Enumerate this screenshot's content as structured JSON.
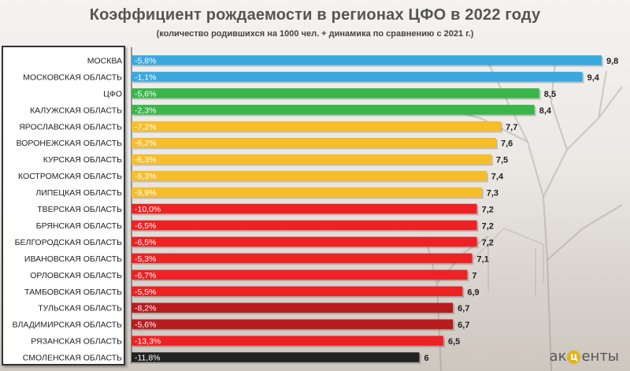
{
  "title": "Коэффициент рождаемости в регионах ЦФО в 2022 году",
  "subtitle": "(количество родившихся на 1000 чел. + динамика по сравнению с 2021 г.)",
  "logo": {
    "prefix": "ак",
    "mark": "ц",
    "suffix": "енты"
  },
  "colors": {
    "blue": "#3aa8df",
    "green": "#3ab54a",
    "yellow": "#f7be2a",
    "red": "#ed2224",
    "darkred": "#b81c1f",
    "black": "#222222"
  },
  "chart_data": {
    "type": "bar",
    "orientation": "horizontal",
    "title": "Коэффициент рождаемости в регионах ЦФО в 2022 году",
    "subtitle": "(количество родившихся на 1000 чел. + динамика по сравнению с 2021 г.)",
    "xlim": [
      0,
      9.8
    ],
    "grid": false,
    "categories": [
      "МОСКВА",
      "МОСКОВСКАЯ ОБЛАСТЬ",
      "ЦФО",
      "КАЛУЖСКАЯ ОБЛАСТЬ",
      "ЯРОСЛАВСКАЯ ОБЛАСТЬ",
      "ВОРОНЕЖСКАЯ ОБЛАСТЬ",
      "КУРСКАЯ ОБЛАСТЬ",
      "КОСТРОМСКАЯ ОБЛАСТЬ",
      "ЛИПЕЦКАЯ ОБЛАСТЬ",
      "ТВЕРСКАЯ ОБЛАСТЬ",
      "БРЯНСКАЯ ОБЛАСТЬ",
      "БЕЛГОРОДСКАЯ ОБЛАСТЬ",
      "ИВАНОВСКАЯ ОБЛАСТЬ",
      "ОРЛОВСКАЯ ОБЛАСТЬ",
      "ТАМБОВСКАЯ ОБЛАСТЬ",
      "ТУЛЬСКАЯ ОБЛАСТЬ",
      "ВЛАДИМИРСКАЯ ОБЛАСТЬ",
      "РЯЗАНСКАЯ ОБЛАСТЬ",
      "СМОЛЕНСКАЯ ОБЛАСТЬ"
    ],
    "values": [
      9.8,
      9.4,
      8.5,
      8.4,
      7.7,
      7.6,
      7.5,
      7.4,
      7.3,
      7.2,
      7.2,
      7.2,
      7.1,
      7,
      6.9,
      6.7,
      6.7,
      6.5,
      6
    ],
    "value_labels": [
      "9,8",
      "9,4",
      "8,5",
      "8,4",
      "7,7",
      "7,6",
      "7,5",
      "7,4",
      "7,3",
      "7,2",
      "7,2",
      "7,2",
      "7,1",
      "7",
      "6,9",
      "6,7",
      "6,7",
      "6,5",
      "6"
    ],
    "change_labels": [
      "-5,8%",
      "-1,1%",
      "-5,6%",
      "-2,3%",
      "-7,2%",
      "-6,2%",
      "-6,3%",
      "-6,3%",
      "-9,9%",
      "-10,0%",
      "-6,5%",
      "-6,5%",
      "-5,3%",
      "-6,7%",
      "-5,5%",
      "-8,2%",
      "-5,6%",
      "-13,3%",
      "-11,8%"
    ],
    "bar_colors": [
      "blue",
      "blue",
      "green",
      "green",
      "yellow",
      "yellow",
      "yellow",
      "yellow",
      "yellow",
      "red",
      "red",
      "red",
      "red",
      "red",
      "red",
      "darkred",
      "darkred",
      "red",
      "black"
    ]
  }
}
